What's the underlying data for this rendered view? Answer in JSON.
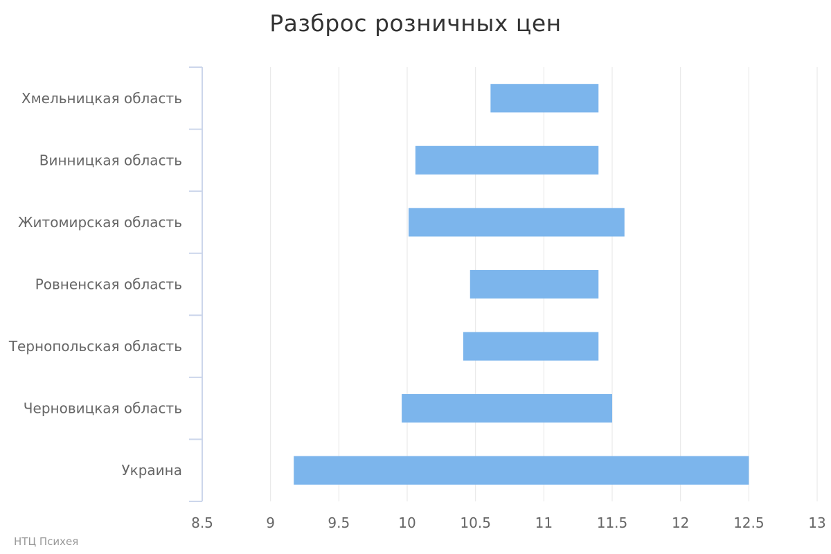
{
  "chart_data": {
    "type": "bar",
    "orientation": "horizontal",
    "subtype": "floating-range",
    "title": "Разброс розничных цен",
    "xlabel": "",
    "ylabel": "",
    "xlim": [
      8.5,
      13
    ],
    "x_ticks": [
      "8.5",
      "9",
      "9.5",
      "10",
      "10.5",
      "11",
      "11.5",
      "12",
      "12.5",
      "13"
    ],
    "grid": true,
    "legend": "none",
    "bar_color": "#7cb5ec",
    "categories": [
      "Хмельницкая область",
      "Винницкая область",
      "Житомирская область",
      "Ровненская область",
      "Тернопольская область",
      "Черновицкая область",
      "Украина"
    ],
    "ranges": [
      [
        10.61,
        11.4
      ],
      [
        10.06,
        11.4
      ],
      [
        10.01,
        11.59
      ],
      [
        10.46,
        11.4
      ],
      [
        10.41,
        11.4
      ],
      [
        9.96,
        11.5
      ],
      [
        9.17,
        12.5
      ]
    ]
  },
  "credit": "НТЦ Психея"
}
